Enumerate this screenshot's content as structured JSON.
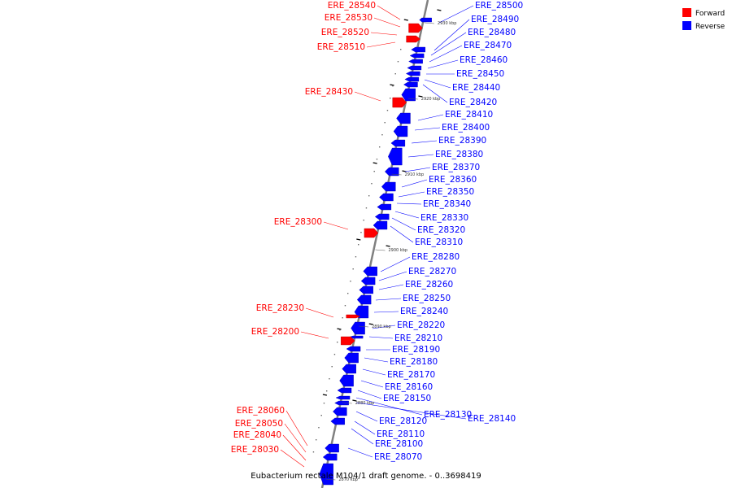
{
  "caption": "Eubacterium rectale M104/1 draft genome. - 0..3698419",
  "legend": [
    {
      "label": "Forward",
      "color": "#ff0000"
    },
    {
      "label": "Reverse",
      "color": "#0000ff"
    }
  ],
  "ticks": [
    "2930 kbp",
    "2920 kbp",
    "2910 kbp",
    "2900 kbp",
    "2890 kbp",
    "2880 kbp",
    "2870 kbp"
  ],
  "forward_genes": [
    "ERE_28540",
    "ERE_28530",
    "ERE_28520",
    "ERE_28510",
    "ERE_28430",
    "ERE_28300",
    "ERE_28230",
    "ERE_28200",
    "ERE_28060",
    "ERE_28050",
    "ERE_28040",
    "ERE_28030"
  ],
  "reverse_genes": [
    "ERE_28500",
    "ERE_28490",
    "ERE_28480",
    "ERE_28470",
    "ERE_28460",
    "ERE_28450",
    "ERE_28440",
    "ERE_28420",
    "ERE_28410",
    "ERE_28400",
    "ERE_28390",
    "ERE_28380",
    "ERE_28370",
    "ERE_28360",
    "ERE_28350",
    "ERE_28340",
    "ERE_28330",
    "ERE_28320",
    "ERE_28310",
    "ERE_28280",
    "ERE_28270",
    "ERE_28260",
    "ERE_28250",
    "ERE_28240",
    "ERE_28220",
    "ERE_28210",
    "ERE_28190",
    "ERE_28180",
    "ERE_28170",
    "ERE_28160",
    "ERE_28150",
    "ERE_28130",
    "ERE_28140",
    "ERE_28120",
    "ERE_28110",
    "ERE_28100",
    "ERE_28070"
  ]
}
